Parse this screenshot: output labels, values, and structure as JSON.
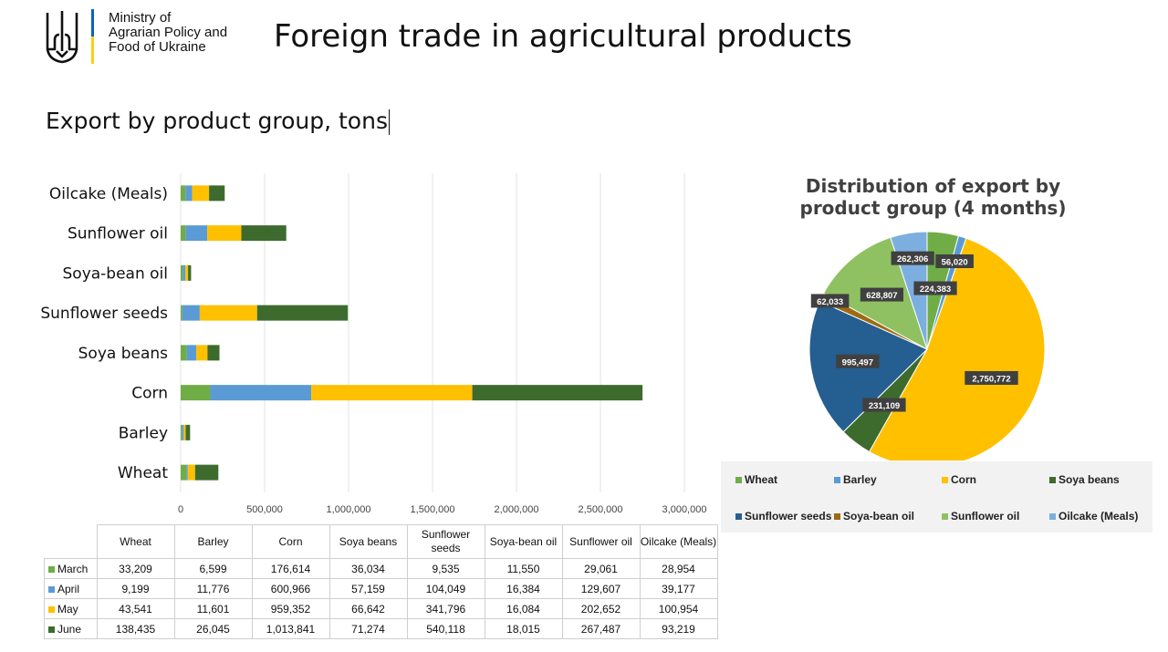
{
  "header": {
    "ministry_lines": [
      "Ministry of",
      "Agrarian Policy and",
      "Food of Ukraine"
    ],
    "title": "Foreign trade in agricultural products",
    "emblem": "trident-icon"
  },
  "subtitle": "Export by product group, tons",
  "colors": {
    "March": "#70ad47",
    "April": "#5b9bd5",
    "May": "#ffc000",
    "June": "#3d6b2e",
    "Wheat": "#70ad47",
    "Barley": "#5b9bd5",
    "Corn": "#ffc000",
    "Soya beans": "#3d6b2e",
    "Sunflower seeds": "#255e91",
    "Soya-bean oil": "#9e6a12",
    "Sunflower oil": "#8fc163",
    "Oilcake (Meals)": "#7cafe0"
  },
  "table": {
    "header": [
      "Wheat",
      "Barley",
      "Corn",
      "Soya beans",
      "Sunflower seeds",
      "Soya-bean oil",
      "Sunflower oil",
      "Oilcake (Meals)"
    ],
    "rows": [
      {
        "label": "March",
        "cells": [
          "33,209",
          "6,599",
          "176,614",
          "36,034",
          "9,535",
          "11,550",
          "29,061",
          "28,954"
        ]
      },
      {
        "label": "April",
        "cells": [
          "9,199",
          "11,776",
          "600,966",
          "57,159",
          "104,049",
          "16,384",
          "129,607",
          "39,177"
        ]
      },
      {
        "label": "May",
        "cells": [
          "43,541",
          "11,601",
          "959,352",
          "66,642",
          "341,796",
          "16,084",
          "202,652",
          "100,954"
        ]
      },
      {
        "label": "June",
        "cells": [
          "138,435",
          "26,045",
          "1,013,841",
          "71,274",
          "540,118",
          "18,015",
          "267,487",
          "93,219"
        ]
      }
    ]
  },
  "chart_data": [
    {
      "type": "bar",
      "orientation": "horizontal",
      "stacked": true,
      "categories": [
        "Wheat",
        "Barley",
        "Corn",
        "Soya beans",
        "Sunflower seeds",
        "Soya-bean oil",
        "Sunflower oil",
        "Oilcake (Meals)"
      ],
      "series": [
        {
          "name": "March",
          "values": [
            33209,
            6599,
            176614,
            36034,
            9535,
            11550,
            29061,
            28954
          ]
        },
        {
          "name": "April",
          "values": [
            9199,
            11776,
            600966,
            57159,
            104049,
            16384,
            129607,
            39177
          ]
        },
        {
          "name": "May",
          "values": [
            43541,
            11601,
            959352,
            66642,
            341796,
            16084,
            202652,
            100954
          ]
        },
        {
          "name": "June",
          "values": [
            138435,
            26045,
            1013841,
            71274,
            540118,
            18015,
            267487,
            93219
          ]
        }
      ],
      "xlim": [
        0,
        3000000
      ],
      "xticks": [
        "0",
        "500,000",
        "1,000,000",
        "1,500,000",
        "2,000,000",
        "2,500,000",
        "3,000,000"
      ],
      "grid": true
    },
    {
      "type": "pie",
      "title": "Distribution of export by product group (4 months)",
      "labels": [
        "Wheat",
        "Barley",
        "Corn",
        "Soya beans",
        "Sunflower seeds",
        "Soya-bean oil",
        "Sunflower oil",
        "Oilcake (Meals)"
      ],
      "values": [
        224383,
        56020,
        2750772,
        231109,
        995497,
        62033,
        628807,
        262306
      ],
      "value_labels": [
        "224,383",
        "56,020",
        "2,750,772",
        "231,109",
        "995,497",
        "62,033",
        "628,807",
        "262,306"
      ],
      "legend": "bottom"
    }
  ]
}
